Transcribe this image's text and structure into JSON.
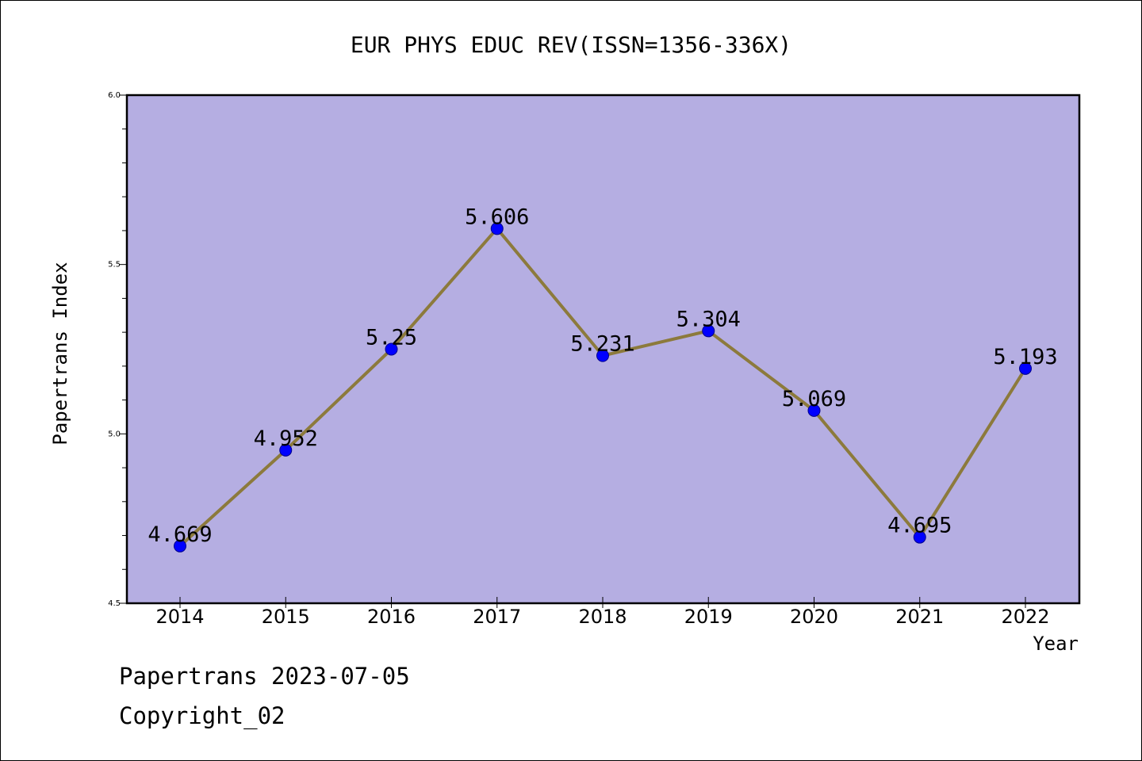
{
  "chart_data": {
    "type": "line",
    "title": "EUR PHYS EDUC REV(ISSN=1356-336X)",
    "xlabel": "Year",
    "ylabel": "Papertrans Index",
    "categories": [
      "2014",
      "2015",
      "2016",
      "2017",
      "2018",
      "2019",
      "2020",
      "2021",
      "2022"
    ],
    "values": [
      4.669,
      4.952,
      5.25,
      5.606,
      5.231,
      5.304,
      5.069,
      4.695,
      5.193
    ],
    "data_labels": [
      "4.669",
      "4.952",
      "5.25",
      "5.606",
      "5.231",
      "5.304",
      "5.069",
      "4.695",
      "5.193"
    ],
    "ylim": [
      4.5,
      6.0
    ],
    "yticks": [
      "4.5",
      "5.0",
      "5.5",
      "6.0"
    ],
    "grid": false,
    "colors": {
      "plot_background": "#b5aee2",
      "line": "#8c7a3c",
      "marker": "#0000ff"
    }
  },
  "footer": {
    "date_line": "Papertrans 2023-07-05",
    "copyright_line": "Copyright_02"
  }
}
